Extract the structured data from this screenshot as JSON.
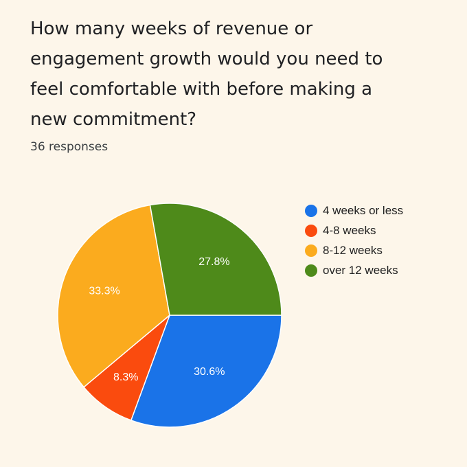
{
  "question": {
    "title": "How many weeks of revenue or engagement growth would you need to feel comfortable with before making a new commitment?",
    "response_count": "36 responses"
  },
  "chart_data": {
    "type": "pie",
    "categories": [
      "4 weeks or less",
      "4-8 weeks",
      "8-12 weeks",
      "over 12 weeks"
    ],
    "values": [
      30.6,
      8.3,
      33.3,
      27.8
    ],
    "labels": [
      "30.6%",
      "8.3%",
      "33.3%",
      "27.8%"
    ],
    "colors": [
      "#1a73e8",
      "#fa4b0e",
      "#fbab1e",
      "#4e8a1a"
    ],
    "legend_position": "right"
  },
  "legend": {
    "items": [
      {
        "label": "4 weeks or less",
        "color": "#1a73e8"
      },
      {
        "label": "4-8 weeks",
        "color": "#fa4b0e"
      },
      {
        "label": "8-12 weeks",
        "color": "#fbab1e"
      },
      {
        "label": "over 12 weeks",
        "color": "#4e8a1a"
      }
    ]
  }
}
